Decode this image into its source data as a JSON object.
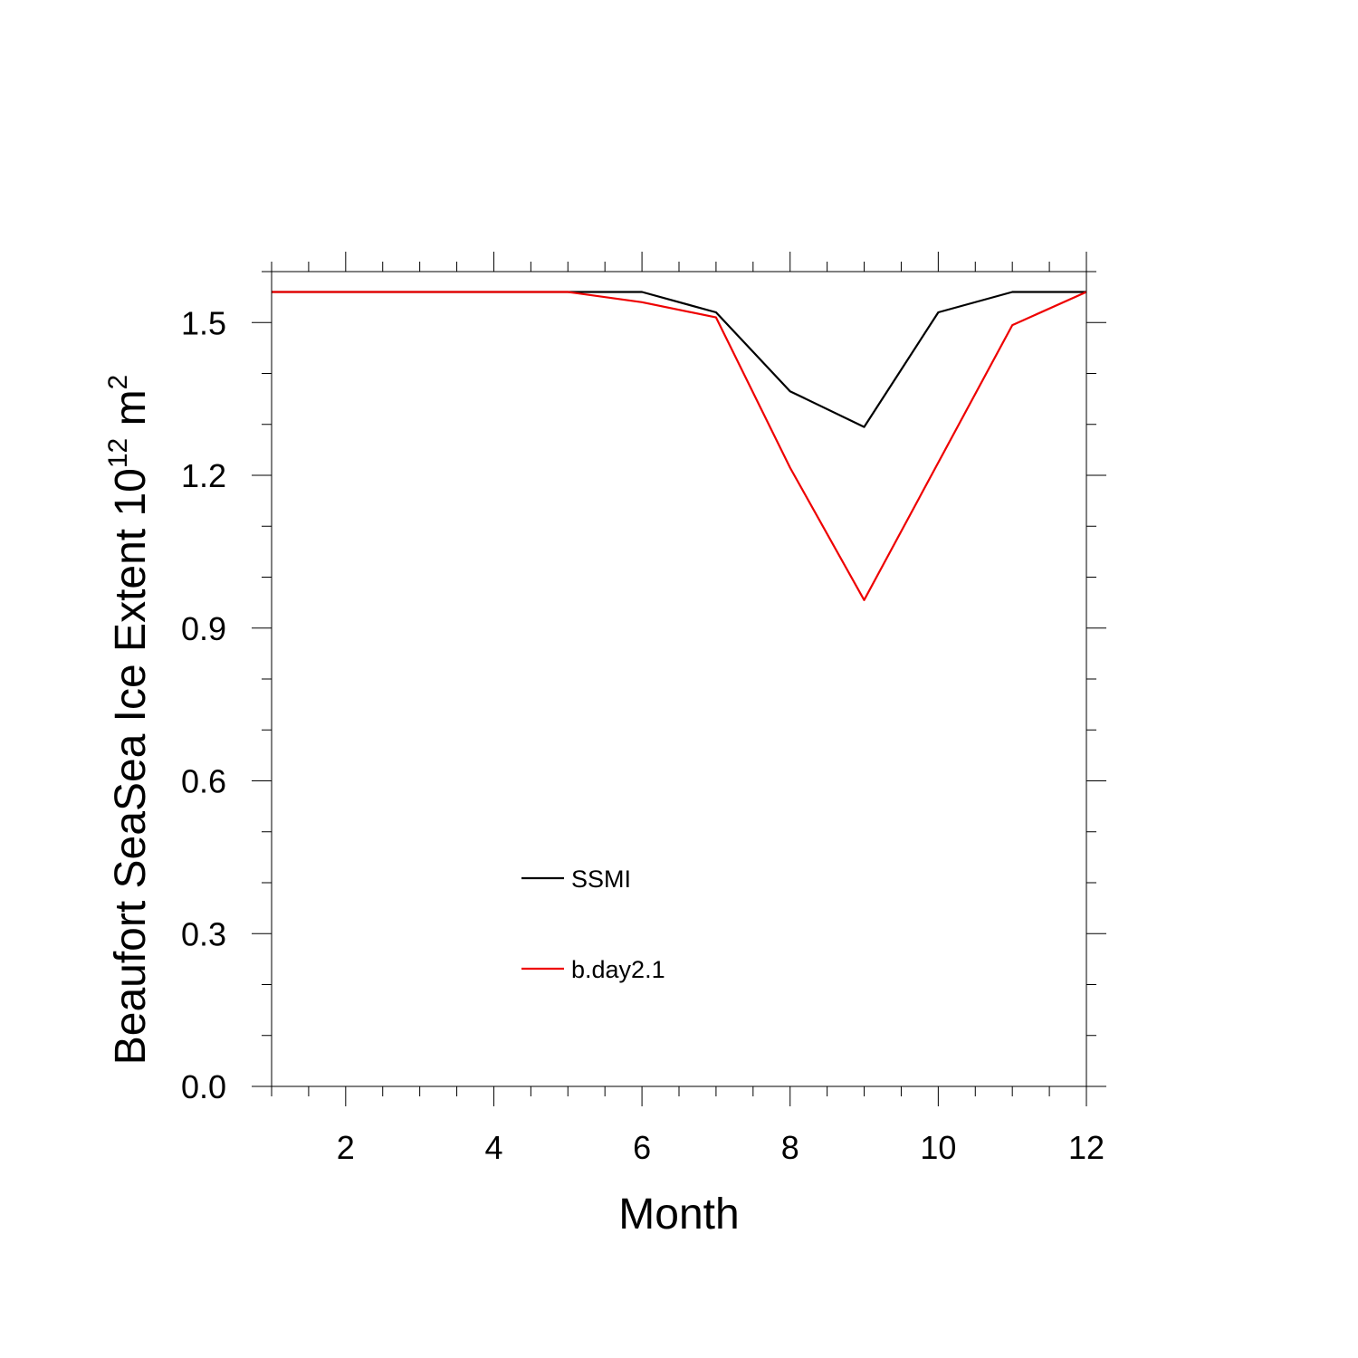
{
  "chart_data": {
    "type": "line",
    "xlabel": "Month",
    "ylabel": {
      "text": "Beaufort SeaSea Ice Extent 10",
      "sup1": "12",
      "mid": " m",
      "sup2": "2"
    },
    "xlim": [
      1,
      12
    ],
    "ylim": [
      0,
      1.6
    ],
    "xticks": [
      2,
      4,
      6,
      8,
      10,
      12
    ],
    "xtick_labels": [
      "2",
      "4",
      "6",
      "8",
      "10",
      "12"
    ],
    "x_minor_step": 0.5,
    "yticks": [
      0.0,
      0.3,
      0.6,
      0.9,
      1.2,
      1.5
    ],
    "ytick_labels": [
      "0.0",
      "0.3",
      "0.6",
      "0.9",
      "1.2",
      "1.5"
    ],
    "y_minor_step": 0.1,
    "grid": false,
    "legend_position": "lower-left inside",
    "x": [
      1,
      2,
      3,
      4,
      5,
      6,
      7,
      8,
      9,
      10,
      11,
      12
    ],
    "series": [
      {
        "name": "SSMI",
        "color": "#000000",
        "values": [
          1.56,
          1.56,
          1.56,
          1.56,
          1.56,
          1.56,
          1.52,
          1.365,
          1.295,
          1.52,
          1.56,
          1.56
        ]
      },
      {
        "name": "b.day2.1",
        "color": "#ee0000",
        "values": [
          1.56,
          1.56,
          1.56,
          1.56,
          1.56,
          1.54,
          1.51,
          1.215,
          0.955,
          1.225,
          1.495,
          1.56
        ]
      }
    ]
  }
}
